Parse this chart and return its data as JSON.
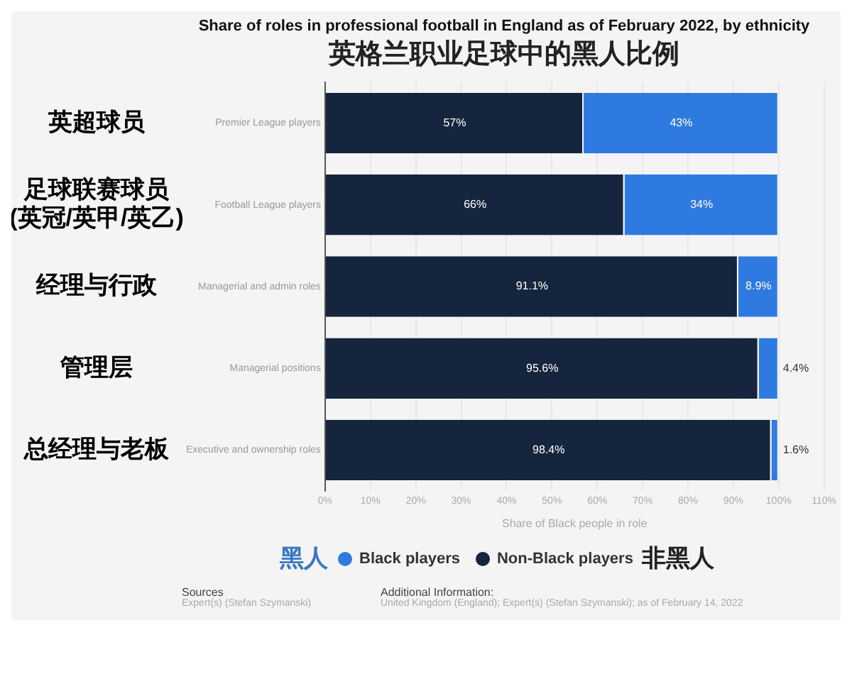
{
  "chart_data": {
    "type": "bar",
    "orientation": "horizontal",
    "stacked": true,
    "title": "Share of roles in professional football in England as of February 2022, by ethnicity",
    "subtitle": "英格兰职业足球中的黑人比例",
    "categories": [
      "Premier League players",
      "Football League players",
      "Managerial and admin roles",
      "Managerial positions",
      "Executive and ownership roles"
    ],
    "series": [
      {
        "name": "Non-Black players",
        "color": "#14253d",
        "values": [
          57,
          66,
          91.1,
          95.6,
          98.4
        ],
        "value_labels": [
          "57%",
          "66%",
          "91.1%",
          "95.6%",
          "98.4%"
        ]
      },
      {
        "name": "Black players",
        "color": "#2f7ae0",
        "values": [
          43,
          34,
          8.9,
          4.4,
          1.6
        ],
        "value_labels": [
          "43%",
          "34%",
          "8.9%",
          "4.4%",
          "1.6%"
        ]
      }
    ],
    "xlim": [
      0,
      110
    ],
    "xticks": [
      {
        "value": 0,
        "label": "0%"
      },
      {
        "value": 10,
        "label": "10%"
      },
      {
        "value": 20,
        "label": "20%"
      },
      {
        "value": 30,
        "label": "30%"
      },
      {
        "value": 40,
        "label": "40%"
      },
      {
        "value": 50,
        "label": "50%"
      },
      {
        "value": 60,
        "label": "60%"
      },
      {
        "value": 70,
        "label": "70%"
      },
      {
        "value": 80,
        "label": "80%"
      },
      {
        "value": 90,
        "label": "90%"
      },
      {
        "value": 100,
        "label": "100%"
      },
      {
        "value": 110,
        "label": "110%"
      }
    ],
    "xlabel": "Share of Black people in role",
    "grid": "x",
    "legend": "bottom",
    "legend_title": "黑人",
    "annotations": [
      "英超球员",
      "足球联赛球员\n(英冠/英甲/英乙)",
      "经理与行政",
      "管理层",
      "总经理与老板",
      "非黑人",
      "Sources",
      "Expert(s) (Stefan Szymanski)",
      "Additional Information:",
      "United Kingdom (England); Expert(s) (Stefan Szymanski); as of February 14, 2022"
    ]
  }
}
